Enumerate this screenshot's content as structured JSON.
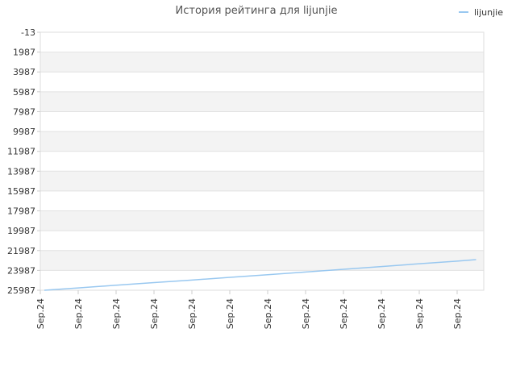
{
  "chart_data": {
    "type": "line",
    "title": "История рейтинга для lijunjie",
    "y_reversed": true,
    "ylim": [
      -13,
      25987
    ],
    "yticks": [
      -13,
      1987,
      3987,
      5987,
      7987,
      9987,
      11987,
      13987,
      15987,
      17987,
      19987,
      21987,
      23987,
      25987
    ],
    "x_tick_labels": [
      "Sep.24",
      "Sep.24",
      "Sep.24",
      "Sep.24",
      "Sep.24",
      "Sep.24",
      "Sep.24",
      "Sep.24",
      "Sep.24",
      "Sep.24",
      "Sep.24",
      "Sep.24"
    ],
    "legend_position": "top-right",
    "grid": true,
    "series": [
      {
        "name": "lijunjie",
        "color": "#99c8f0",
        "x": [
          0,
          1,
          2,
          3,
          4,
          5,
          6,
          7,
          8,
          9,
          10,
          11,
          11.5
        ],
        "values": [
          25987,
          25750,
          25480,
          25220,
          24960,
          24690,
          24420,
          24150,
          23870,
          23600,
          23320,
          23050,
          22900
        ]
      }
    ]
  }
}
